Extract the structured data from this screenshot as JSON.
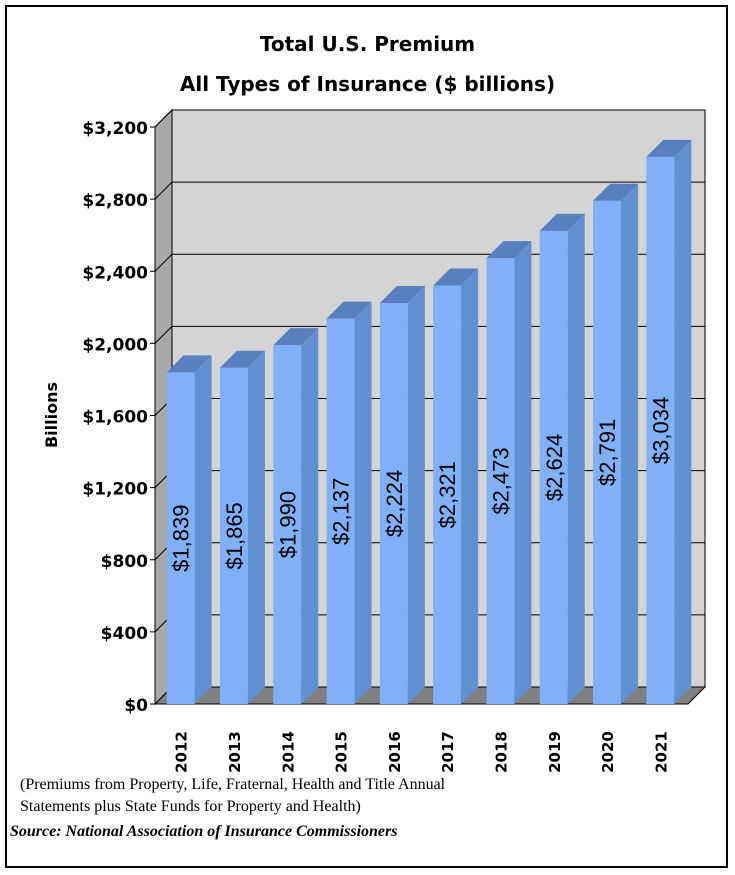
{
  "chart_data": {
    "type": "bar",
    "title": "Total U.S. Premium",
    "subtitle": "All Types of Insurance ($ billions)",
    "ylabel": "Billions",
    "xlabel": "",
    "categories": [
      "2012",
      "2013",
      "2014",
      "2015",
      "2016",
      "2017",
      "2018",
      "2019",
      "2020",
      "2021"
    ],
    "values": [
      1839,
      1865,
      1990,
      2137,
      2224,
      2321,
      2473,
      2624,
      2791,
      3034
    ],
    "data_labels": [
      "$1,839",
      "$1,865",
      "$1,990",
      "$2,137",
      "$2,224",
      "$2,321",
      "$2,473",
      "$2,624",
      "$2,791",
      "$3,034"
    ],
    "ylim": [
      0,
      3200
    ],
    "yticks": [
      0,
      400,
      800,
      1200,
      1600,
      2000,
      2400,
      2800,
      3200
    ],
    "ytick_labels": [
      "$0",
      "$400",
      "$800",
      "$1,200",
      "$1,600",
      "$2,000",
      "$2,400",
      "$2,800",
      "$3,200"
    ],
    "grid": true,
    "style": "3d-column",
    "colors": {
      "bar_front": "#80b0f8",
      "bar_side": "#6090d0",
      "bar_top": "#5880c0",
      "wall": "#d4d4d4",
      "wall_side": "#a8a8a8",
      "floor": "#808080"
    }
  },
  "notes": {
    "line1": "(Premiums from Property, Life, Fraternal, Health and Title Annual",
    "line2": "Statements plus State Funds for Property and Health)",
    "source": "Source: National Association of Insurance Commissioners"
  }
}
